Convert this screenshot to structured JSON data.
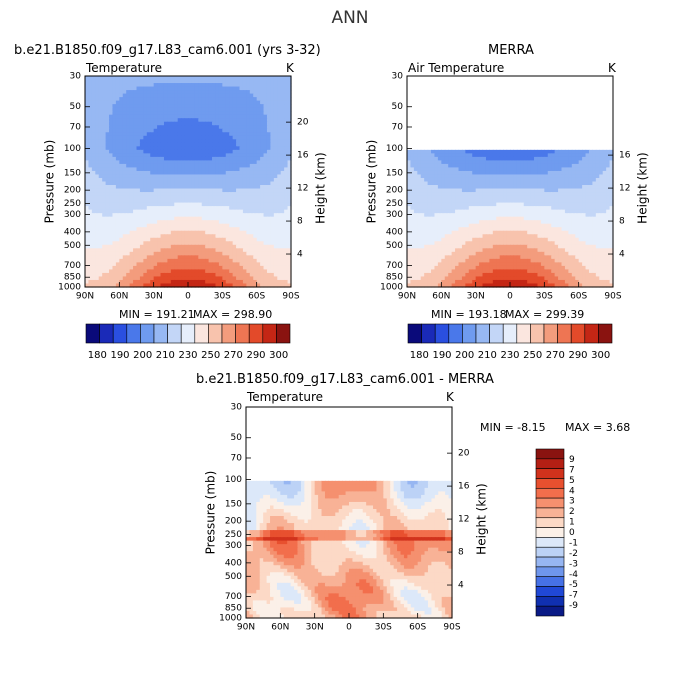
{
  "figure": {
    "title": "ANN"
  },
  "chart_data": [
    {
      "type": "heatmap",
      "title": "b.e21.B1850.f09_g17.L83_cam6.001 (yrs 3-32)",
      "subtitle_left": "Temperature",
      "units": "K",
      "xlabel": "",
      "ylabel": "Pressure (mb)",
      "y2label": "Height (km)",
      "x_ticks": [
        "90N",
        "60N",
        "30N",
        "0",
        "30S",
        "60S",
        "90S"
      ],
      "y_ticks": [
        "30",
        "50",
        "70",
        "100",
        "150",
        "200",
        "250",
        "300",
        "400",
        "500",
        "700",
        "850",
        "1000"
      ],
      "y2_ticks": [
        "20",
        "16",
        "12",
        "8",
        "4"
      ],
      "min_label": "MIN = 191.21",
      "max_label": "MAX = 298.90",
      "min": 191.21,
      "max": 298.9,
      "colorbar_labels": [
        "180",
        "190",
        "200",
        "210",
        "230",
        "250",
        "270",
        "290",
        "300"
      ],
      "colorbar_colors": [
        "#0a0a7a",
        "#1a2ab8",
        "#2a4fe0",
        "#4a78ea",
        "#6f9bef",
        "#97b8f3",
        "#c3d6f7",
        "#e6eefb",
        "#fbe6df",
        "#f8c3ad",
        "#f39c7d",
        "#ee7553",
        "#e34a2a",
        "#c42615",
        "#8a1310"
      ]
    },
    {
      "type": "heatmap",
      "title": "MERRA",
      "subtitle_left": "Air Temperature",
      "units": "K",
      "xlabel": "",
      "ylabel": "Pressure (mb)",
      "y2label": "Height (km)",
      "x_ticks": [
        "90N",
        "60N",
        "30N",
        "0",
        "30S",
        "60S",
        "90S"
      ],
      "y_ticks": [
        "30",
        "50",
        "70",
        "100",
        "150",
        "200",
        "250",
        "300",
        "400",
        "500",
        "700",
        "850",
        "1000"
      ],
      "y2_ticks": [
        "16",
        "12",
        "8",
        "4"
      ],
      "min_label": "MIN = 193.18",
      "max_label": "MAX = 299.39",
      "min": 193.18,
      "max": 299.39,
      "data_top_pressure_mb": 100,
      "colorbar_labels": [
        "180",
        "190",
        "200",
        "210",
        "230",
        "250",
        "270",
        "290",
        "300"
      ],
      "colorbar_colors": [
        "#0a0a7a",
        "#1a2ab8",
        "#2a4fe0",
        "#4a78ea",
        "#6f9bef",
        "#97b8f3",
        "#c3d6f7",
        "#e6eefb",
        "#fbe6df",
        "#f8c3ad",
        "#f39c7d",
        "#ee7553",
        "#e34a2a",
        "#c42615",
        "#8a1310"
      ]
    },
    {
      "type": "heatmap",
      "title": "b.e21.B1850.f09_g17.L83_cam6.001 - MERRA",
      "subtitle_left": "Temperature",
      "units": "K",
      "xlabel": "",
      "ylabel": "Pressure (mb)",
      "y2label": "Height (km)",
      "x_ticks": [
        "90N",
        "60N",
        "30N",
        "0",
        "30S",
        "60S",
        "90S"
      ],
      "y_ticks": [
        "30",
        "50",
        "70",
        "100",
        "150",
        "200",
        "250",
        "300",
        "400",
        "500",
        "700",
        "850",
        "1000"
      ],
      "y2_ticks": [
        "20",
        "16",
        "12",
        "8",
        "4"
      ],
      "min_label": "MIN = -8.15",
      "max_label": "MAX = 3.68",
      "min": -8.15,
      "max": 3.68,
      "data_top_pressure_mb": 100,
      "colorbar_labels": [
        "9",
        "7",
        "5",
        "4",
        "3",
        "2",
        "1",
        "0",
        "-1",
        "-2",
        "-3",
        "-4",
        "-5",
        "-7",
        "-9"
      ],
      "colorbar_colors": [
        "#8a1310",
        "#b41f14",
        "#d1321c",
        "#e8502f",
        "#f26e4c",
        "#f5906f",
        "#f8b296",
        "#fcd9c6",
        "#fbf0e8",
        "#dce8f9",
        "#bcd2f6",
        "#97b6f2",
        "#6f96ec",
        "#4671e6",
        "#2048d6",
        "#1030b0",
        "#0a1a86"
      ]
    }
  ]
}
